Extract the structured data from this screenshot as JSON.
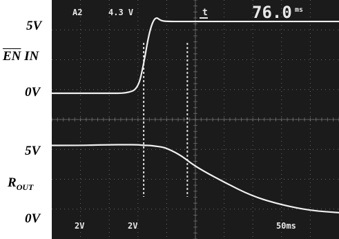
{
  "left_labels": {
    "top_trace_5v": "5V",
    "top_trace_name_overbar": "EN",
    "top_trace_name_rest": " IN",
    "top_trace_0v": "0V",
    "bottom_trace_5v": "5V",
    "bottom_trace_name_main": "R",
    "bottom_trace_name_sub": "OUT",
    "bottom_trace_0v": "0V"
  },
  "scope_readouts": {
    "channel_top_left": "A2",
    "trigger_level": "4.3 V",
    "trigger_icon": "t",
    "cursor_time": "76.0",
    "cursor_time_unit": "ms",
    "ch1_volts_div": "2V",
    "ch2_volts_div": "2V",
    "time_div": "50ms"
  },
  "colors": {
    "screen_background": "#1b1b1b",
    "trace": "#f0f0f0",
    "grid": "#8a8a8a",
    "labels": "#000000"
  },
  "chart_data": {
    "type": "line",
    "title": "",
    "xlabel": "",
    "ylabel": "",
    "grid": true,
    "x_divisions": 10,
    "y_divisions": 8,
    "x_unit": "ms",
    "x": [
      0,
      50,
      100,
      130,
      150,
      160,
      170,
      180,
      190,
      200,
      225,
      250,
      300,
      350,
      400,
      450,
      500
    ],
    "series": [
      {
        "name": "EN IN",
        "y_unit": "V",
        "values": [
          0,
          0,
          0,
          0,
          0.3,
          2.0,
          4.3,
          5.3,
          5.0,
          4.95,
          4.95,
          4.95,
          4.95,
          4.95,
          4.95,
          4.95,
          4.95
        ]
      },
      {
        "name": "ROUT",
        "y_unit": "V",
        "values": [
          5.0,
          5.0,
          5.05,
          5.05,
          5.05,
          5.0,
          5.0,
          4.95,
          4.9,
          4.8,
          4.3,
          3.5,
          2.4,
          1.4,
          0.8,
          0.4,
          0.25
        ]
      }
    ],
    "markers": [
      {
        "name": "cursor-1",
        "x": 160
      },
      {
        "name": "cursor-2",
        "x": 236
      }
    ],
    "annotations": [
      "A2",
      "4.3 V",
      "76.0ms",
      "2V",
      "2V",
      "50ms"
    ]
  }
}
